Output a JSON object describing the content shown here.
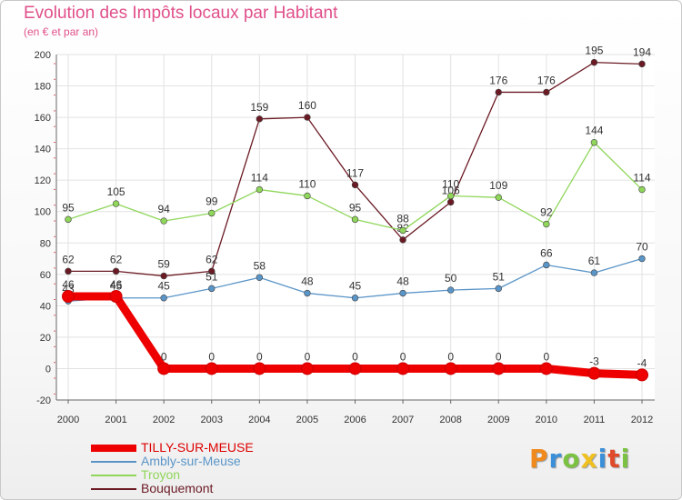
{
  "chart_data": {
    "type": "line",
    "title": "Evolution des Impôts locaux par Habitant",
    "subtitle": "(en € et par an)",
    "x": [
      "2000",
      "2001",
      "2002",
      "2003",
      "2004",
      "2005",
      "2006",
      "2007",
      "2008",
      "2009",
      "2010",
      "2011",
      "2012"
    ],
    "ylim": [
      -20,
      200
    ],
    "yticks": [
      -20,
      0,
      20,
      40,
      60,
      80,
      100,
      120,
      140,
      160,
      180,
      200
    ],
    "grid": true,
    "legend_position": "bottom-left",
    "series": [
      {
        "name": "Bouquemont",
        "color": "#6b1a24",
        "values": [
          62,
          62,
          59,
          62,
          159,
          160,
          117,
          82,
          106,
          176,
          176,
          195,
          194
        ]
      },
      {
        "name": "Troyon",
        "color": "#8fd65a",
        "values": [
          95,
          105,
          94,
          99,
          114,
          110,
          95,
          88,
          110,
          109,
          92,
          144,
          114
        ]
      },
      {
        "name": "Ambly-sur-Meuse",
        "color": "#5a95c8",
        "values": [
          43,
          45,
          45,
          51,
          58,
          48,
          45,
          48,
          50,
          51,
          66,
          61,
          70
        ]
      },
      {
        "name": "TILLY-SUR-MEUSE",
        "color": "#ee0000",
        "values": [
          46,
          46,
          0,
          0,
          0,
          0,
          0,
          0,
          0,
          0,
          0,
          -3,
          -4
        ]
      }
    ],
    "legend": [
      "TILLY-SUR-MEUSE",
      "Ambly-sur-Meuse",
      "Troyon",
      "Bouquemont"
    ]
  },
  "logo": {
    "letters": [
      {
        "char": "P",
        "color": "#f08a1c"
      },
      {
        "char": "r",
        "color": "#3a8fd8"
      },
      {
        "char": "o",
        "color": "#7cc242"
      },
      {
        "char": "x",
        "color": "#f0c020"
      },
      {
        "char": "i",
        "color": "#3a8fd8"
      },
      {
        "char": "t",
        "color": "#e04a2a"
      },
      {
        "char": "i",
        "color": "#7cc242"
      }
    ]
  }
}
